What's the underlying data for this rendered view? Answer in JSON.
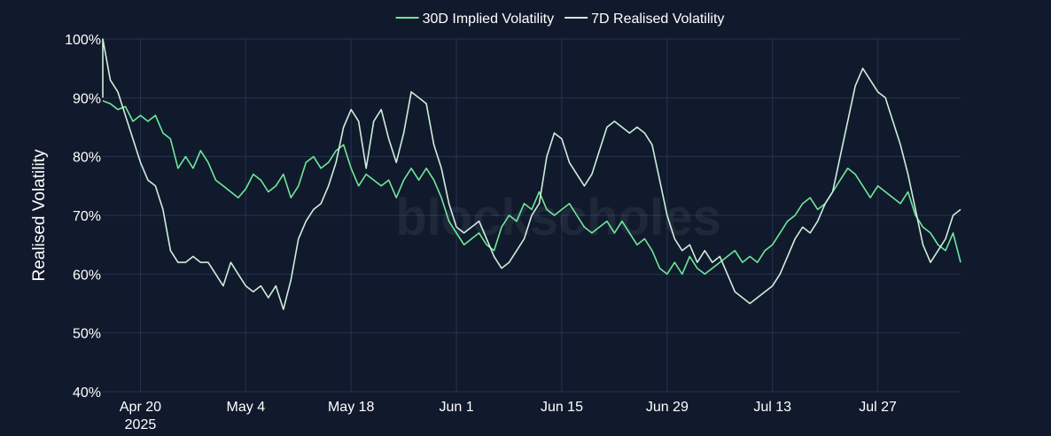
{
  "chart_data": {
    "type": "line",
    "watermark": "blockscholes",
    "ylabel": "Realised Volatility",
    "ylim": [
      40,
      100
    ],
    "y_ticks": [
      {
        "value": 40,
        "label": "40%"
      },
      {
        "value": 50,
        "label": "50%"
      },
      {
        "value": 60,
        "label": "60%"
      },
      {
        "value": 70,
        "label": "70%"
      },
      {
        "value": 80,
        "label": "80%"
      },
      {
        "value": 90,
        "label": "90%"
      },
      {
        "value": 100,
        "label": "100%"
      }
    ],
    "xlim": [
      "2025-04-15",
      "2025-08-07"
    ],
    "x_ticks": [
      {
        "value": "2025-04-20",
        "label": "Apr 20",
        "sublabel": "2025"
      },
      {
        "value": "2025-05-04",
        "label": "May 4",
        "sublabel": ""
      },
      {
        "value": "2025-05-18",
        "label": "May 18",
        "sublabel": ""
      },
      {
        "value": "2025-06-01",
        "label": "Jun 1",
        "sublabel": ""
      },
      {
        "value": "2025-06-15",
        "label": "Jun 15",
        "sublabel": ""
      },
      {
        "value": "2025-06-29",
        "label": "Jun 29",
        "sublabel": ""
      },
      {
        "value": "2025-07-13",
        "label": "Jul 13",
        "sublabel": ""
      },
      {
        "value": "2025-07-27",
        "label": "Jul 27",
        "sublabel": ""
      }
    ],
    "grid": true,
    "legend_position": "top-center",
    "series": [
      {
        "name": "30D Implied Volatility",
        "color": "#6ee89a",
        "points": [
          [
            "2025-04-15",
            89.5
          ],
          [
            "2025-04-16",
            89
          ],
          [
            "2025-04-17",
            88
          ],
          [
            "2025-04-18",
            88.5
          ],
          [
            "2025-04-19",
            86
          ],
          [
            "2025-04-20",
            87
          ],
          [
            "2025-04-21",
            86
          ],
          [
            "2025-04-22",
            87
          ],
          [
            "2025-04-23",
            84
          ],
          [
            "2025-04-24",
            83
          ],
          [
            "2025-04-25",
            78
          ],
          [
            "2025-04-26",
            80
          ],
          [
            "2025-04-27",
            78
          ],
          [
            "2025-04-28",
            81
          ],
          [
            "2025-04-29",
            79
          ],
          [
            "2025-04-30",
            76
          ],
          [
            "2025-05-01",
            75
          ],
          [
            "2025-05-02",
            74
          ],
          [
            "2025-05-03",
            73
          ],
          [
            "2025-05-04",
            74.5
          ],
          [
            "2025-05-05",
            77
          ],
          [
            "2025-05-06",
            76
          ],
          [
            "2025-05-07",
            74
          ],
          [
            "2025-05-08",
            75
          ],
          [
            "2025-05-09",
            77
          ],
          [
            "2025-05-10",
            73
          ],
          [
            "2025-05-11",
            75
          ],
          [
            "2025-05-12",
            79
          ],
          [
            "2025-05-13",
            80
          ],
          [
            "2025-05-14",
            78
          ],
          [
            "2025-05-15",
            79
          ],
          [
            "2025-05-16",
            81
          ],
          [
            "2025-05-17",
            82
          ],
          [
            "2025-05-18",
            78
          ],
          [
            "2025-05-19",
            75
          ],
          [
            "2025-05-20",
            77
          ],
          [
            "2025-05-21",
            76
          ],
          [
            "2025-05-22",
            75
          ],
          [
            "2025-05-23",
            76
          ],
          [
            "2025-05-24",
            73
          ],
          [
            "2025-05-25",
            76
          ],
          [
            "2025-05-26",
            78
          ],
          [
            "2025-05-27",
            76
          ],
          [
            "2025-05-28",
            78
          ],
          [
            "2025-05-29",
            76
          ],
          [
            "2025-05-30",
            73
          ],
          [
            "2025-05-31",
            69
          ],
          [
            "2025-06-01",
            67
          ],
          [
            "2025-06-02",
            65
          ],
          [
            "2025-06-03",
            66
          ],
          [
            "2025-06-04",
            67
          ],
          [
            "2025-06-05",
            65
          ],
          [
            "2025-06-06",
            64
          ],
          [
            "2025-06-07",
            68
          ],
          [
            "2025-06-08",
            70
          ],
          [
            "2025-06-09",
            69
          ],
          [
            "2025-06-10",
            72
          ],
          [
            "2025-06-11",
            71
          ],
          [
            "2025-06-12",
            74
          ],
          [
            "2025-06-13",
            71
          ],
          [
            "2025-06-14",
            70
          ],
          [
            "2025-06-15",
            71
          ],
          [
            "2025-06-16",
            72
          ],
          [
            "2025-06-17",
            70
          ],
          [
            "2025-06-18",
            68
          ],
          [
            "2025-06-19",
            67
          ],
          [
            "2025-06-20",
            68
          ],
          [
            "2025-06-21",
            69
          ],
          [
            "2025-06-22",
            67
          ],
          [
            "2025-06-23",
            69
          ],
          [
            "2025-06-24",
            67
          ],
          [
            "2025-06-25",
            65
          ],
          [
            "2025-06-26",
            66
          ],
          [
            "2025-06-27",
            64
          ],
          [
            "2025-06-28",
            61
          ],
          [
            "2025-06-29",
            60
          ],
          [
            "2025-06-30",
            62
          ],
          [
            "2025-07-01",
            60
          ],
          [
            "2025-07-02",
            63
          ],
          [
            "2025-07-03",
            61
          ],
          [
            "2025-07-04",
            60
          ],
          [
            "2025-07-05",
            61
          ],
          [
            "2025-07-06",
            62
          ],
          [
            "2025-07-07",
            63
          ],
          [
            "2025-07-08",
            64
          ],
          [
            "2025-07-09",
            62
          ],
          [
            "2025-07-10",
            63
          ],
          [
            "2025-07-11",
            62
          ],
          [
            "2025-07-12",
            64
          ],
          [
            "2025-07-13",
            65
          ],
          [
            "2025-07-14",
            67
          ],
          [
            "2025-07-15",
            69
          ],
          [
            "2025-07-16",
            70
          ],
          [
            "2025-07-17",
            72
          ],
          [
            "2025-07-18",
            73
          ],
          [
            "2025-07-19",
            71
          ],
          [
            "2025-07-20",
            72
          ],
          [
            "2025-07-21",
            74
          ],
          [
            "2025-07-22",
            76
          ],
          [
            "2025-07-23",
            78
          ],
          [
            "2025-07-24",
            77
          ],
          [
            "2025-07-25",
            75
          ],
          [
            "2025-07-26",
            73
          ],
          [
            "2025-07-27",
            75
          ],
          [
            "2025-07-28",
            74
          ],
          [
            "2025-07-29",
            73
          ],
          [
            "2025-07-30",
            72
          ],
          [
            "2025-07-31",
            74
          ],
          [
            "2025-08-01",
            70
          ],
          [
            "2025-08-02",
            68
          ],
          [
            "2025-08-03",
            67
          ],
          [
            "2025-08-04",
            65
          ],
          [
            "2025-08-05",
            64
          ],
          [
            "2025-08-06",
            67
          ],
          [
            "2025-08-07",
            62
          ]
        ]
      },
      {
        "name": "7D Realised Volatility",
        "color": "#cdeedc",
        "points": [
          [
            "2025-04-15",
            90
          ],
          [
            "2025-04-15",
            100
          ],
          [
            "2025-04-16",
            93
          ],
          [
            "2025-04-17",
            91
          ],
          [
            "2025-04-18",
            87
          ],
          [
            "2025-04-19",
            83
          ],
          [
            "2025-04-20",
            79
          ],
          [
            "2025-04-21",
            76
          ],
          [
            "2025-04-22",
            75
          ],
          [
            "2025-04-23",
            71
          ],
          [
            "2025-04-24",
            64
          ],
          [
            "2025-04-25",
            62
          ],
          [
            "2025-04-26",
            62
          ],
          [
            "2025-04-27",
            63
          ],
          [
            "2025-04-28",
            62
          ],
          [
            "2025-04-29",
            62
          ],
          [
            "2025-04-30",
            60
          ],
          [
            "2025-05-01",
            58
          ],
          [
            "2025-05-02",
            62
          ],
          [
            "2025-05-03",
            60
          ],
          [
            "2025-05-04",
            58
          ],
          [
            "2025-05-05",
            57
          ],
          [
            "2025-05-06",
            58
          ],
          [
            "2025-05-07",
            56
          ],
          [
            "2025-05-08",
            58
          ],
          [
            "2025-05-09",
            54
          ],
          [
            "2025-05-10",
            59
          ],
          [
            "2025-05-11",
            66
          ],
          [
            "2025-05-12",
            69
          ],
          [
            "2025-05-13",
            71
          ],
          [
            "2025-05-14",
            72
          ],
          [
            "2025-05-15",
            75
          ],
          [
            "2025-05-16",
            79
          ],
          [
            "2025-05-17",
            85
          ],
          [
            "2025-05-18",
            88
          ],
          [
            "2025-05-19",
            86
          ],
          [
            "2025-05-20",
            78
          ],
          [
            "2025-05-21",
            86
          ],
          [
            "2025-05-22",
            88
          ],
          [
            "2025-05-23",
            83
          ],
          [
            "2025-05-24",
            79
          ],
          [
            "2025-05-25",
            84
          ],
          [
            "2025-05-26",
            91
          ],
          [
            "2025-05-27",
            90
          ],
          [
            "2025-05-28",
            89
          ],
          [
            "2025-05-29",
            82
          ],
          [
            "2025-05-30",
            78
          ],
          [
            "2025-05-31",
            72
          ],
          [
            "2025-06-01",
            68
          ],
          [
            "2025-06-02",
            67
          ],
          [
            "2025-06-03",
            68
          ],
          [
            "2025-06-04",
            69
          ],
          [
            "2025-06-05",
            66
          ],
          [
            "2025-06-06",
            63
          ],
          [
            "2025-06-07",
            61
          ],
          [
            "2025-06-08",
            62
          ],
          [
            "2025-06-09",
            64
          ],
          [
            "2025-06-10",
            66
          ],
          [
            "2025-06-11",
            70
          ],
          [
            "2025-06-12",
            72
          ],
          [
            "2025-06-13",
            80
          ],
          [
            "2025-06-14",
            84
          ],
          [
            "2025-06-15",
            83
          ],
          [
            "2025-06-16",
            79
          ],
          [
            "2025-06-17",
            77
          ],
          [
            "2025-06-18",
            75
          ],
          [
            "2025-06-19",
            77
          ],
          [
            "2025-06-20",
            81
          ],
          [
            "2025-06-21",
            85
          ],
          [
            "2025-06-22",
            86
          ],
          [
            "2025-06-23",
            85
          ],
          [
            "2025-06-24",
            84
          ],
          [
            "2025-06-25",
            85
          ],
          [
            "2025-06-26",
            84
          ],
          [
            "2025-06-27",
            82
          ],
          [
            "2025-06-28",
            76
          ],
          [
            "2025-06-29",
            70
          ],
          [
            "2025-06-30",
            66
          ],
          [
            "2025-07-01",
            64
          ],
          [
            "2025-07-02",
            65
          ],
          [
            "2025-07-03",
            62
          ],
          [
            "2025-07-04",
            64
          ],
          [
            "2025-07-05",
            62
          ],
          [
            "2025-07-06",
            63
          ],
          [
            "2025-07-07",
            60
          ],
          [
            "2025-07-08",
            57
          ],
          [
            "2025-07-09",
            56
          ],
          [
            "2025-07-10",
            55
          ],
          [
            "2025-07-11",
            56
          ],
          [
            "2025-07-12",
            57
          ],
          [
            "2025-07-13",
            58
          ],
          [
            "2025-07-14",
            60
          ],
          [
            "2025-07-15",
            63
          ],
          [
            "2025-07-16",
            66
          ],
          [
            "2025-07-17",
            68
          ],
          [
            "2025-07-18",
            67
          ],
          [
            "2025-07-19",
            69
          ],
          [
            "2025-07-20",
            72
          ],
          [
            "2025-07-21",
            74
          ],
          [
            "2025-07-22",
            80
          ],
          [
            "2025-07-23",
            86
          ],
          [
            "2025-07-24",
            92
          ],
          [
            "2025-07-25",
            95
          ],
          [
            "2025-07-26",
            93
          ],
          [
            "2025-07-27",
            91
          ],
          [
            "2025-07-28",
            90
          ],
          [
            "2025-07-29",
            86
          ],
          [
            "2025-07-30",
            82
          ],
          [
            "2025-07-31",
            77
          ],
          [
            "2025-08-01",
            71
          ],
          [
            "2025-08-02",
            65
          ],
          [
            "2025-08-03",
            62
          ],
          [
            "2025-08-04",
            64
          ],
          [
            "2025-08-05",
            66
          ],
          [
            "2025-08-06",
            70
          ],
          [
            "2025-08-07",
            71
          ]
        ]
      }
    ]
  }
}
